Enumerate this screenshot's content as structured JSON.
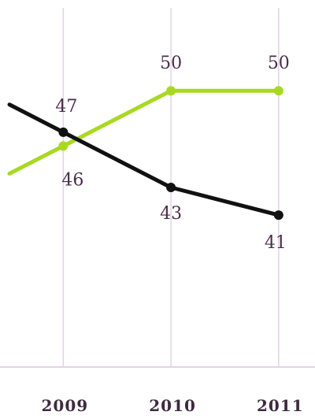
{
  "chart_data": {
    "type": "line",
    "x": [
      2008.5,
      2009,
      2010,
      2011
    ],
    "tick_labels": [
      "2009",
      "2010",
      "2011"
    ],
    "series": [
      {
        "values": [
          49,
          47,
          43,
          41
        ],
        "color": "#111111",
        "data_labels": [
          "",
          "47",
          "43",
          "41"
        ]
      },
      {
        "values": [
          44,
          46,
          50,
          50
        ],
        "color": "#a8d920",
        "data_labels": [
          "",
          "46",
          "50",
          "50"
        ]
      }
    ],
    "xlim": [
      2008.5,
      2011.25
    ],
    "ylim": [
      30,
      56
    ],
    "grid": {
      "vertical": true,
      "color": "#e2d4e2"
    },
    "baseline_color": "#e2d4e2",
    "title": "",
    "xlabel": "",
    "ylabel": ""
  }
}
